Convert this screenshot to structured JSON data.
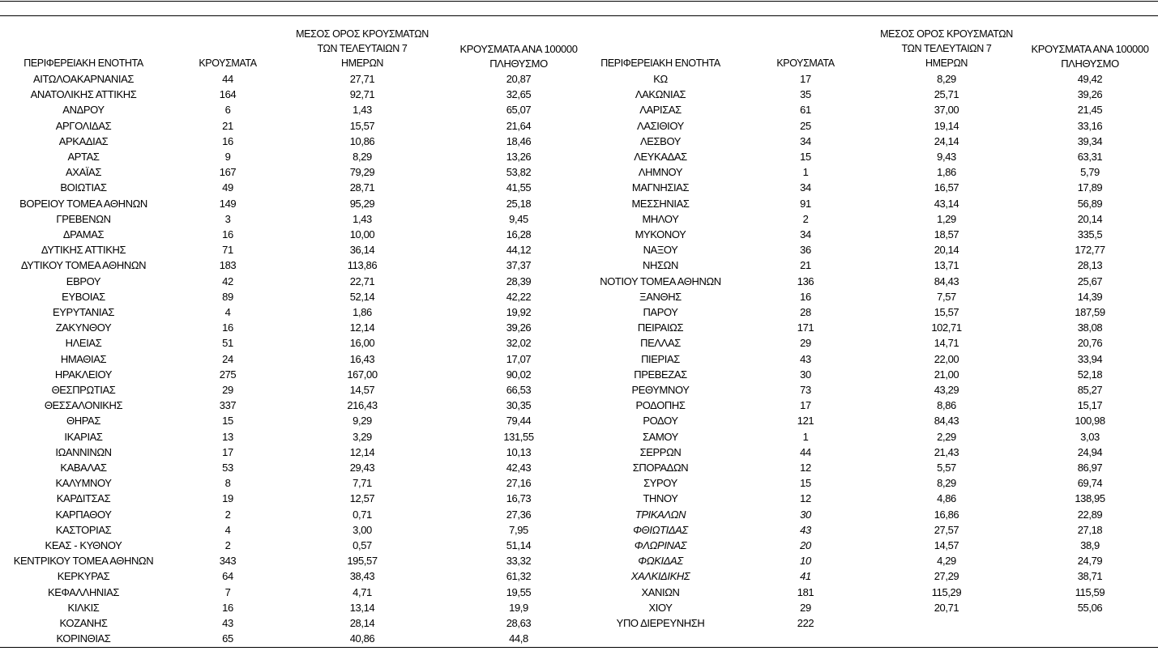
{
  "headers": {
    "region": "ΠΕΡΙΦΕΡΕΙΑΚΗ ΕΝΟΤΗΤΑ",
    "cases": "ΚΡΟΥΣΜΑΤΑ",
    "avg7_line1": "ΜΕΣΟΣ ΟΡΟΣ ΚΡΟΥΣΜΑΤΩΝ",
    "avg7_line2": "ΤΩΝ ΤΕΛΕΥΤΑΙΩΝ 7",
    "avg7_line3": "ΗΜΕΡΩΝ",
    "per100k_line1": "ΚΡΟΥΣΜΑΤΑ ΑΝΑ 100000",
    "per100k_line2": "ΠΛΗΘΥΣΜΟ"
  },
  "left_rows": [
    {
      "name": "ΑΙΤΩΛΟΑΚΑΡΝΑΝΙΑΣ",
      "cases": "44",
      "avg7": "27,71",
      "per100k": "20,87"
    },
    {
      "name": "ΑΝΑΤΟΛΙΚΗΣ ΑΤΤΙΚΗΣ",
      "cases": "164",
      "avg7": "92,71",
      "per100k": "32,65"
    },
    {
      "name": "ΑΝΔΡΟΥ",
      "cases": "6",
      "avg7": "1,43",
      "per100k": "65,07"
    },
    {
      "name": "ΑΡΓΟΛΙΔΑΣ",
      "cases": "21",
      "avg7": "15,57",
      "per100k": "21,64"
    },
    {
      "name": "ΑΡΚΑΔΙΑΣ",
      "cases": "16",
      "avg7": "10,86",
      "per100k": "18,46"
    },
    {
      "name": "ΑΡΤΑΣ",
      "cases": "9",
      "avg7": "8,29",
      "per100k": "13,26"
    },
    {
      "name": "ΑΧΑΪΑΣ",
      "cases": "167",
      "avg7": "79,29",
      "per100k": "53,82"
    },
    {
      "name": "ΒΟΙΩΤΙΑΣ",
      "cases": "49",
      "avg7": "28,71",
      "per100k": "41,55"
    },
    {
      "name": "ΒΟΡΕΙΟΥ ΤΟΜΕΑ ΑΘΗΝΩΝ",
      "cases": "149",
      "avg7": "95,29",
      "per100k": "25,18"
    },
    {
      "name": "ΓΡΕΒΕΝΩΝ",
      "cases": "3",
      "avg7": "1,43",
      "per100k": "9,45"
    },
    {
      "name": "ΔΡΑΜΑΣ",
      "cases": "16",
      "avg7": "10,00",
      "per100k": "16,28"
    },
    {
      "name": "ΔΥΤΙΚΗΣ ΑΤΤΙΚΗΣ",
      "cases": "71",
      "avg7": "36,14",
      "per100k": "44,12"
    },
    {
      "name": "ΔΥΤΙΚΟΥ ΤΟΜΕΑ ΑΘΗΝΩΝ",
      "cases": "183",
      "avg7": "113,86",
      "per100k": "37,37"
    },
    {
      "name": "ΕΒΡΟΥ",
      "cases": "42",
      "avg7": "22,71",
      "per100k": "28,39"
    },
    {
      "name": "ΕΥΒΟΙΑΣ",
      "cases": "89",
      "avg7": "52,14",
      "per100k": "42,22"
    },
    {
      "name": "ΕΥΡΥΤΑΝΙΑΣ",
      "cases": "4",
      "avg7": "1,86",
      "per100k": "19,92"
    },
    {
      "name": "ΖΑΚΥΝΘΟΥ",
      "cases": "16",
      "avg7": "12,14",
      "per100k": "39,26"
    },
    {
      "name": "ΗΛΕΙΑΣ",
      "cases": "51",
      "avg7": "16,00",
      "per100k": "32,02"
    },
    {
      "name": "ΗΜΑΘΙΑΣ",
      "cases": "24",
      "avg7": "16,43",
      "per100k": "17,07"
    },
    {
      "name": "ΗΡΑΚΛΕΙΟΥ",
      "cases": "275",
      "avg7": "167,00",
      "per100k": "90,02"
    },
    {
      "name": "ΘΕΣΠΡΩΤΙΑΣ",
      "cases": "29",
      "avg7": "14,57",
      "per100k": "66,53"
    },
    {
      "name": "ΘΕΣΣΑΛΟΝΙΚΗΣ",
      "cases": "337",
      "avg7": "216,43",
      "per100k": "30,35"
    },
    {
      "name": "ΘΗΡΑΣ",
      "cases": "15",
      "avg7": "9,29",
      "per100k": "79,44"
    },
    {
      "name": "ΙΚΑΡΙΑΣ",
      "cases": "13",
      "avg7": "3,29",
      "per100k": "131,55"
    },
    {
      "name": "ΙΩΑΝΝΙΝΩΝ",
      "cases": "17",
      "avg7": "12,14",
      "per100k": "10,13"
    },
    {
      "name": "ΚΑΒΑΛΑΣ",
      "cases": "53",
      "avg7": "29,43",
      "per100k": "42,43"
    },
    {
      "name": "ΚΑΛΥΜΝΟΥ",
      "cases": "8",
      "avg7": "7,71",
      "per100k": "27,16"
    },
    {
      "name": "ΚΑΡΔΙΤΣΑΣ",
      "cases": "19",
      "avg7": "12,57",
      "per100k": "16,73"
    },
    {
      "name": "ΚΑΡΠΑΘΟΥ",
      "cases": "2",
      "avg7": "0,71",
      "per100k": "27,36"
    },
    {
      "name": "ΚΑΣΤΟΡΙΑΣ",
      "cases": "4",
      "avg7": "3,00",
      "per100k": "7,95"
    },
    {
      "name": "ΚΕΑΣ - ΚΥΘΝΟΥ",
      "cases": "2",
      "avg7": "0,57",
      "per100k": "51,14"
    },
    {
      "name": "ΚΕΝΤΡΙΚΟΥ ΤΟΜΕΑ ΑΘΗΝΩΝ",
      "cases": "343",
      "avg7": "195,57",
      "per100k": "33,32"
    },
    {
      "name": "ΚΕΡΚΥΡΑΣ",
      "cases": "64",
      "avg7": "38,43",
      "per100k": "61,32"
    },
    {
      "name": "ΚΕΦΑΛΛΗΝΙΑΣ",
      "cases": "7",
      "avg7": "4,71",
      "per100k": "19,55"
    },
    {
      "name": "ΚΙΛΚΙΣ",
      "cases": "16",
      "avg7": "13,14",
      "per100k": "19,9"
    },
    {
      "name": "ΚΟΖΑΝΗΣ",
      "cases": "43",
      "avg7": "28,14",
      "per100k": "28,63"
    },
    {
      "name": "ΚΟΡΙΝΘΙΑΣ",
      "cases": "65",
      "avg7": "40,86",
      "per100k": "44,8"
    }
  ],
  "right_rows": [
    {
      "name": "ΚΩ",
      "cases": "17",
      "avg7": "8,29",
      "per100k": "49,42"
    },
    {
      "name": "ΛΑΚΩΝΙΑΣ",
      "cases": "35",
      "avg7": "25,71",
      "per100k": "39,26"
    },
    {
      "name": "ΛΑΡΙΣΑΣ",
      "cases": "61",
      "avg7": "37,00",
      "per100k": "21,45"
    },
    {
      "name": "ΛΑΣΙΘΙΟΥ",
      "cases": "25",
      "avg7": "19,14",
      "per100k": "33,16"
    },
    {
      "name": "ΛΕΣΒΟΥ",
      "cases": "34",
      "avg7": "24,14",
      "per100k": "39,34"
    },
    {
      "name": "ΛΕΥΚΑΔΑΣ",
      "cases": "15",
      "avg7": "9,43",
      "per100k": "63,31"
    },
    {
      "name": "ΛΗΜΝΟΥ",
      "cases": "1",
      "avg7": "1,86",
      "per100k": "5,79"
    },
    {
      "name": "ΜΑΓΝΗΣΙΑΣ",
      "cases": "34",
      "avg7": "16,57",
      "per100k": "17,89"
    },
    {
      "name": "ΜΕΣΣΗΝΙΑΣ",
      "cases": "91",
      "avg7": "43,14",
      "per100k": "56,89"
    },
    {
      "name": "ΜΗΛΟΥ",
      "cases": "2",
      "avg7": "1,29",
      "per100k": "20,14"
    },
    {
      "name": "ΜΥΚΟΝΟΥ",
      "cases": "34",
      "avg7": "18,57",
      "per100k": "335,5"
    },
    {
      "name": "ΝΑΞΟΥ",
      "cases": "36",
      "avg7": "20,14",
      "per100k": "172,77"
    },
    {
      "name": "ΝΗΣΩΝ",
      "cases": "21",
      "avg7": "13,71",
      "per100k": "28,13"
    },
    {
      "name": "ΝΟΤΙΟΥ ΤΟΜΕΑ ΑΘΗΝΩΝ",
      "cases": "136",
      "avg7": "84,43",
      "per100k": "25,67"
    },
    {
      "name": "ΞΑΝΘΗΣ",
      "cases": "16",
      "avg7": "7,57",
      "per100k": "14,39"
    },
    {
      "name": "ΠΑΡΟΥ",
      "cases": "28",
      "avg7": "15,57",
      "per100k": "187,59"
    },
    {
      "name": "ΠΕΙΡΑΙΩΣ",
      "cases": "171",
      "avg7": "102,71",
      "per100k": "38,08"
    },
    {
      "name": "ΠΕΛΛΑΣ",
      "cases": "29",
      "avg7": "14,71",
      "per100k": "20,76"
    },
    {
      "name": "ΠΙΕΡΙΑΣ",
      "cases": "43",
      "avg7": "22,00",
      "per100k": "33,94"
    },
    {
      "name": "ΠΡΕΒΕΖΑΣ",
      "cases": "30",
      "avg7": "21,00",
      "per100k": "52,18"
    },
    {
      "name": "ΡΕΘΥΜΝΟΥ",
      "cases": "73",
      "avg7": "43,29",
      "per100k": "85,27"
    },
    {
      "name": "ΡΟΔΟΠΗΣ",
      "cases": "17",
      "avg7": "8,86",
      "per100k": "15,17"
    },
    {
      "name": "ΡΟΔΟΥ",
      "cases": "121",
      "avg7": "84,43",
      "per100k": "100,98"
    },
    {
      "name": "ΣΑΜΟΥ",
      "cases": "1",
      "avg7": "2,29",
      "per100k": "3,03"
    },
    {
      "name": "ΣΕΡΡΩΝ",
      "cases": "44",
      "avg7": "21,43",
      "per100k": "24,94"
    },
    {
      "name": "ΣΠΟΡΑΔΩΝ",
      "cases": "12",
      "avg7": "5,57",
      "per100k": "86,97"
    },
    {
      "name": "ΣΥΡΟΥ",
      "cases": "15",
      "avg7": "8,29",
      "per100k": "69,74"
    },
    {
      "name": "ΤΗΝΟΥ",
      "cases": "12",
      "avg7": "4,86",
      "per100k": "138,95"
    },
    {
      "name": "ΤΡΙΚΑΛΩΝ",
      "cases": "30",
      "avg7": "16,86",
      "per100k": "22,89",
      "italic": true
    },
    {
      "name": "ΦΘΙΩΤΙΔΑΣ",
      "cases": "43",
      "avg7": "27,57",
      "per100k": "27,18",
      "italic": true
    },
    {
      "name": "ΦΛΩΡΙΝΑΣ",
      "cases": "20",
      "avg7": "14,57",
      "per100k": "38,9",
      "italic": true
    },
    {
      "name": "ΦΩΚΙΔΑΣ",
      "cases": "10",
      "avg7": "4,29",
      "per100k": "24,79",
      "italic": true
    },
    {
      "name": "ΧΑΛΚΙΔΙΚΗΣ",
      "cases": "41",
      "avg7": "27,29",
      "per100k": "38,71",
      "italic": true
    },
    {
      "name": "ΧΑΝΙΩΝ",
      "cases": "181",
      "avg7": "115,29",
      "per100k": "115,59"
    },
    {
      "name": "ΧΙΟΥ",
      "cases": "29",
      "avg7": "20,71",
      "per100k": "55,06"
    },
    {
      "name": "ΥΠΟ ΔΙΕΡΕΥΝΗΣΗ",
      "cases": "222",
      "avg7": "",
      "per100k": ""
    }
  ]
}
